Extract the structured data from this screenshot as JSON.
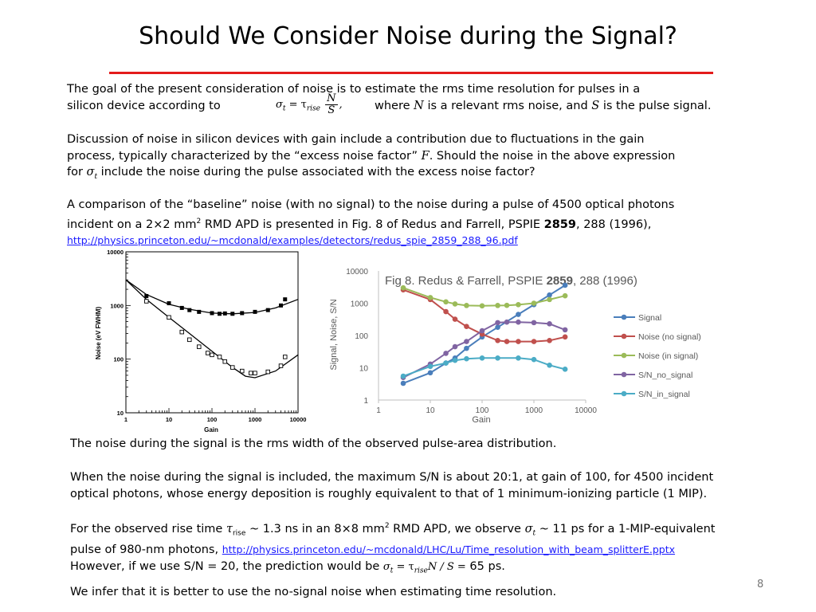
{
  "title": "Should We Consider Noise during the Signal?",
  "p1": {
    "line1": "The goal of the present consideration of noise is to estimate the rms time resolution for pulses in a",
    "line2_start": "silicon device according to",
    "formula_lhs": "σ",
    "formula_lhs_sub": "t",
    "formula_eq": " = τ",
    "formula_rise": "rise",
    "formula_num": "N",
    "formula_den": "S",
    "formula_end": ",",
    "where_1": "where ",
    "where_N": "N",
    "where_2": " is a relevant rms noise, and ",
    "where_S": "S",
    "where_3": " is the pulse signal."
  },
  "p2": {
    "line1": "Discussion of noise in silicon devices with gain include a contribution due to fluctuations in the gain",
    "line2a": "process, typically characterized by the “excess noise factor” ",
    "line2F": "F",
    "line2b": ".   Should the noise in the above expression",
    "line3a": "for ",
    "sigma": "σ",
    "sigma_sub": "t",
    "line3b": " include the noise during the pulse associated with the excess noise factor?"
  },
  "p3": {
    "line1": "A comparison of the “baseline” noise (with no signal) to the noise during a pulse of 4500 optical photons",
    "line2a": "incident on a 2",
    "times": "×",
    "line2b": "2 mm",
    "sup2": "2",
    "line2c": " RMD APD is presented in Fig. 8 of Redus and Farrell, PSPIE ",
    "vol": "2859",
    "line2d": ", 288 (1996),",
    "link": "http://physics.princeton.edu/~mcdonald/examples/detectors/redus_spie_2859_288_96.pdf"
  },
  "p4": {
    "text": "The noise during the signal is the rms width of the observed pulse-area distribution."
  },
  "p5": {
    "line1": "When the noise during the signal is included, the maximum S/N is about 20:1, at gain of 100, for 4500 incident",
    "line2": "optical photons, whose energy deposition is roughly equivalent to that of 1 minimum-ionizing particle (1 MIP)."
  },
  "p6": {
    "l1a": "For the observed rise time ",
    "tau": "τ",
    "rise": "rise",
    "l1b": " ~ 1.3 ns in an 8",
    "times": "×",
    "l1c": "8 mm",
    "sup2": "2",
    "l1d": " RMD APD, we observe ",
    "sigma": "σ",
    "sigma_sub": "t",
    "l1e": "  ~ 11 ps for a 1-MIP-equivalent",
    "l2a": "pulse of 980-nm photons, ",
    "link": "http://physics.princeton.edu/~mcdonald/LHC/Lu/Time_resolution_with_beam_splitterE.pptx",
    "l3a": "However, if we use S/N = 20, the prediction would be ",
    "eq_sigma": "σ",
    "eq_t": "t",
    "eq_mid": " = τ",
    "eq_rise": "rise",
    "eq_rest": "N / S =",
    "l3b": " 65 ps."
  },
  "p7": {
    "text": "We infer that it is better to use the no-signal noise when estimating time resolution."
  },
  "page_number": "8",
  "colors": {
    "rule": "#e31b1b",
    "link": "#1a1aff",
    "signal": "#4a7ebb",
    "noise_no": "#c0504d",
    "noise_in": "#9bbb59",
    "sn_no": "#8064a2",
    "sn_in": "#4bacc6"
  },
  "chart_data": [
    {
      "type": "scatter",
      "title": "",
      "xlabel": "Gain",
      "ylabel": "Noise (eV FWHM)",
      "xscale": "log",
      "yscale": "log",
      "xlim": [
        1,
        10000
      ],
      "ylim": [
        10,
        10000
      ],
      "x_ticks": [
        "1",
        "10",
        "100",
        "1000",
        "10000"
      ],
      "y_ticks": [
        "10",
        "100",
        "1000",
        "10000"
      ],
      "series": [
        {
          "marker": "filled-square",
          "x": [
            3,
            10,
            20,
            30,
            50,
            100,
            150,
            200,
            300,
            500,
            1000,
            2000,
            4000,
            5000
          ],
          "y": [
            1500,
            1100,
            900,
            820,
            760,
            720,
            700,
            710,
            700,
            720,
            760,
            820,
            1000,
            1300
          ]
        },
        {
          "marker": "open-square",
          "x": [
            3,
            10,
            20,
            30,
            50,
            80,
            100,
            150,
            200,
            300,
            500,
            800,
            1000,
            2000,
            4000,
            5000
          ],
          "y": [
            1200,
            600,
            320,
            230,
            170,
            130,
            120,
            110,
            90,
            70,
            60,
            55,
            55,
            58,
            75,
            110
          ]
        }
      ],
      "curves": [
        {
          "x": [
            1,
            3,
            10,
            30,
            100,
            300,
            1000,
            3000,
            10000
          ],
          "y": [
            3000,
            1600,
            1050,
            850,
            720,
            700,
            740,
            900,
            1300
          ]
        },
        {
          "x": [
            1,
            3,
            10,
            30,
            100,
            300,
            600,
            1000,
            3000,
            10000
          ],
          "y": [
            3000,
            1300,
            600,
            300,
            140,
            70,
            48,
            45,
            60,
            120
          ]
        }
      ]
    },
    {
      "type": "line",
      "title_a": "Fig 8. Redus & Farrell, PSPIE ",
      "title_b": "2859",
      "title_c": ", 288 (1996)",
      "xlabel": "Gain",
      "ylabel": "Signal, Noise, S/N",
      "xscale": "log",
      "yscale": "log",
      "xlim": [
        1,
        10000
      ],
      "ylim": [
        1,
        10000
      ],
      "x_ticks": [
        "1",
        "10",
        "100",
        "1000",
        "10000"
      ],
      "y_ticks": [
        "1",
        "10",
        "100",
        "1000",
        "10000"
      ],
      "legend_position": "right",
      "series": [
        {
          "name": "Signal",
          "color": "#4a7ebb",
          "x": [
            3,
            10,
            20,
            30,
            50,
            100,
            200,
            500,
            1000,
            2000,
            4000
          ],
          "y": [
            3.3,
            7,
            14,
            20,
            40,
            90,
            180,
            450,
            900,
            1800,
            3600
          ]
        },
        {
          "name": "Noise (no signal)",
          "color": "#c0504d",
          "x": [
            3,
            10,
            20,
            30,
            50,
            100,
            200,
            300,
            500,
            1000,
            2000,
            4000
          ],
          "y": [
            2600,
            1300,
            550,
            320,
            190,
            110,
            70,
            65,
            65,
            65,
            70,
            90
          ]
        },
        {
          "name": "Noise (in signal)",
          "color": "#9bbb59",
          "x": [
            3,
            10,
            20,
            30,
            50,
            100,
            200,
            300,
            500,
            1000,
            2000,
            4000
          ],
          "y": [
            3000,
            1500,
            1100,
            950,
            850,
            830,
            850,
            860,
            900,
            1000,
            1300,
            1700
          ]
        },
        {
          "name": "S/N_no_signal",
          "color": "#8064a2",
          "x": [
            3,
            10,
            20,
            30,
            50,
            100,
            200,
            300,
            500,
            1000,
            2000,
            4000
          ],
          "y": [
            5,
            13,
            28,
            45,
            65,
            140,
            250,
            260,
            260,
            250,
            230,
            150
          ]
        },
        {
          "name": "S/N_in_signal",
          "color": "#4bacc6",
          "x": [
            3,
            10,
            20,
            30,
            50,
            100,
            200,
            500,
            1000,
            2000,
            4000
          ],
          "y": [
            5.5,
            11,
            14,
            17,
            19,
            20,
            20,
            20,
            18,
            12,
            9
          ]
        }
      ]
    }
  ]
}
